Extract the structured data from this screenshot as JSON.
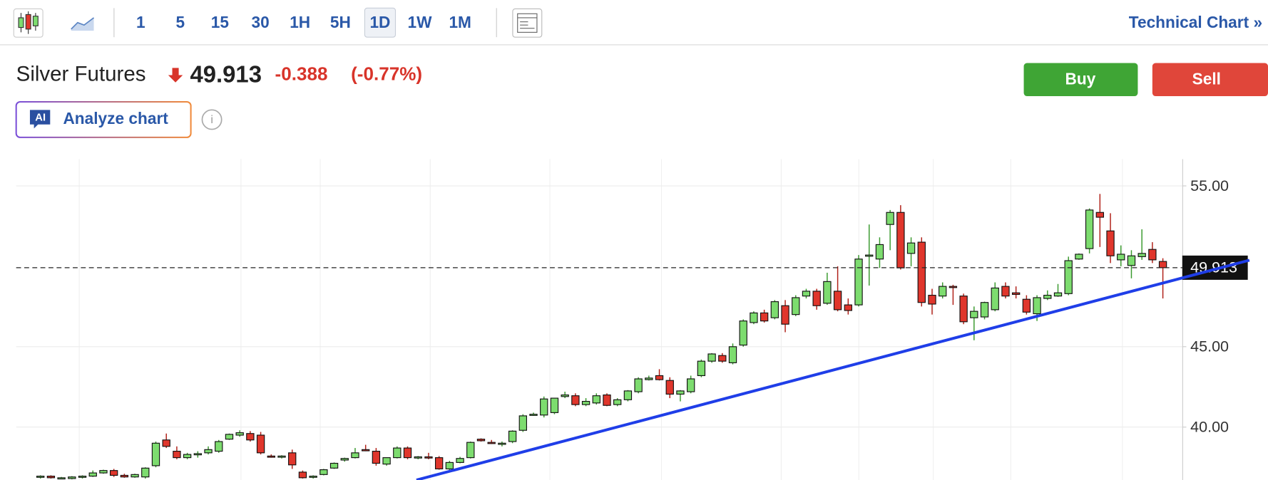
{
  "toolbar": {
    "intervals": [
      "1",
      "5",
      "15",
      "30",
      "1H",
      "5H",
      "1D",
      "1W",
      "1M"
    ],
    "selected": "1D",
    "link": "Technical Chart »"
  },
  "header": {
    "instrument": "Silver Futures",
    "price": 49.913,
    "change": -0.388,
    "change_pct": "(-0.77%)",
    "buy": "Buy",
    "sell": "Sell",
    "ai_badge": "AI",
    "analyze": "Analyze chart",
    "info": "i"
  },
  "chart_data": {
    "type": "candlestick",
    "up_color": "#7ddc6f",
    "down_color": "#e0362c",
    "ylim": [
      36.71,
      56.66
    ],
    "yticks": [
      {
        "value": 55,
        "label": "55.00"
      },
      {
        "value": 45,
        "label": "45.00"
      },
      {
        "value": 40,
        "label": "40.00"
      }
    ],
    "grid": true,
    "open": [
      36.9,
      36.95,
      36.85,
      36.8,
      36.9,
      36.95,
      37.15,
      37.3,
      37.0,
      36.9,
      36.9,
      37.6,
      39.2,
      38.5,
      38.1,
      38.3,
      38.4,
      38.5,
      39.25,
      39.5,
      39.6,
      39.5,
      38.2,
      38.15,
      38.4,
      37.2,
      36.9,
      37.05,
      37.45,
      37.95,
      38.1,
      38.6,
      38.5,
      37.7,
      38.1,
      38.7,
      38.1,
      38.15,
      38.1,
      37.4,
      37.8,
      38.1,
      39.25,
      39.05,
      38.95,
      39.1,
      39.8,
      40.75,
      40.75,
      40.9,
      41.9,
      41.95,
      41.4,
      41.5,
      42.0,
      41.4,
      41.7,
      42.2,
      42.95,
      43.2,
      42.9,
      42.05,
      42.2,
      43.2,
      44.1,
      44.45,
      44.0,
      45.1,
      46.5,
      47.1,
      46.8,
      47.55,
      47.0,
      48.15,
      48.45,
      47.7,
      48.45,
      47.6,
      47.6,
      50.65,
      50.45,
      52.6,
      53.35,
      50.8,
      51.5,
      48.2,
      48.15,
      48.75,
      48.15,
      46.8,
      46.85,
      47.3,
      48.75,
      48.35,
      47.95,
      47.05,
      48.0,
      48.15,
      48.3,
      50.45,
      51.1,
      53.35,
      52.2,
      50.4,
      50.05,
      50.6,
      51.05,
      50.3
    ],
    "high": [
      37.0,
      37.0,
      36.9,
      36.95,
      37.0,
      37.3,
      37.35,
      37.4,
      37.1,
      37.1,
      37.5,
      39.1,
      39.6,
      38.8,
      38.4,
      38.5,
      38.8,
      39.2,
      39.6,
      39.8,
      39.75,
      39.7,
      38.3,
      38.25,
      38.6,
      37.3,
      37.0,
      37.4,
      37.8,
      38.1,
      38.7,
      38.9,
      38.7,
      38.1,
      38.8,
      38.8,
      38.2,
      38.4,
      38.2,
      37.9,
      38.15,
      39.1,
      39.3,
      39.2,
      39.1,
      39.8,
      40.8,
      40.9,
      41.9,
      41.8,
      42.2,
      42.1,
      41.8,
      42.1,
      42.1,
      41.8,
      42.3,
      43.1,
      43.2,
      43.6,
      43.1,
      42.3,
      43.2,
      44.2,
      44.6,
      44.6,
      45.2,
      46.7,
      47.2,
      47.3,
      47.9,
      47.9,
      48.2,
      48.6,
      48.6,
      49.6,
      50.0,
      48.0,
      50.7,
      52.6,
      51.8,
      53.5,
      53.8,
      51.8,
      51.8,
      48.6,
      49.0,
      48.85,
      48.3,
      47.5,
      47.8,
      49.0,
      49.0,
      48.75,
      48.2,
      48.2,
      48.5,
      48.9,
      50.6,
      50.8,
      53.6,
      54.5,
      53.3,
      51.3,
      51.0,
      52.3,
      51.5,
      50.5
    ],
    "low": [
      36.8,
      36.8,
      36.8,
      36.75,
      36.8,
      36.9,
      37.1,
      36.9,
      36.85,
      36.85,
      36.8,
      37.5,
      38.7,
      38.0,
      38.0,
      38.1,
      38.3,
      38.4,
      39.2,
      39.4,
      39.1,
      38.3,
      38.1,
      38.05,
      37.4,
      36.8,
      36.8,
      37.0,
      37.4,
      37.85,
      38.05,
      38.5,
      37.6,
      37.6,
      38.05,
      38.0,
      38.0,
      38.0,
      37.35,
      37.3,
      37.75,
      38.05,
      39.1,
      38.95,
      38.8,
      39.0,
      39.7,
      40.7,
      40.6,
      40.8,
      41.8,
      41.3,
      41.3,
      41.4,
      41.3,
      41.3,
      41.6,
      42.1,
      42.9,
      42.9,
      41.8,
      41.6,
      42.1,
      43.1,
      44.0,
      44.0,
      43.9,
      45.0,
      46.4,
      46.5,
      46.7,
      45.9,
      46.9,
      48.0,
      47.3,
      47.6,
      47.2,
      47.0,
      47.5,
      48.8,
      49.9,
      51.0,
      49.8,
      50.0,
      47.5,
      47.0,
      48.0,
      47.6,
      46.4,
      45.4,
      46.7,
      47.2,
      48.0,
      48.0,
      47.0,
      46.6,
      47.9,
      48.1,
      48.2,
      50.4,
      50.8,
      51.2,
      50.2,
      50.0,
      49.25,
      50.4,
      50.2,
      48.0
    ],
    "close": [
      36.95,
      36.85,
      36.85,
      36.9,
      36.95,
      37.15,
      37.3,
      37.0,
      36.9,
      37.05,
      37.45,
      39.0,
      38.8,
      38.1,
      38.3,
      38.35,
      38.6,
      39.1,
      39.55,
      39.65,
      39.2,
      38.4,
      38.15,
      38.2,
      37.65,
      36.85,
      36.95,
      37.35,
      37.75,
      38.05,
      38.4,
      38.55,
      37.75,
      38.1,
      38.7,
      38.1,
      38.15,
      38.1,
      37.4,
      37.8,
      38.05,
      39.05,
      39.15,
      39.0,
      39.0,
      39.75,
      40.7,
      40.8,
      41.75,
      41.8,
      42.0,
      41.4,
      41.6,
      41.95,
      41.35,
      41.7,
      42.25,
      43.0,
      43.05,
      42.95,
      42.05,
      42.25,
      43.0,
      44.1,
      44.55,
      44.1,
      45.0,
      46.6,
      47.1,
      46.6,
      47.8,
      46.4,
      48.05,
      48.45,
      47.55,
      49.05,
      47.3,
      47.25,
      50.45,
      50.7,
      51.35,
      53.35,
      49.9,
      51.45,
      47.75,
      47.65,
      48.75,
      48.7,
      46.55,
      47.2,
      47.75,
      48.65,
      48.15,
      48.25,
      47.15,
      48.05,
      48.2,
      48.35,
      50.35,
      50.75,
      53.5,
      53.05,
      50.65,
      50.75,
      50.65,
      50.8,
      50.4,
      49.913
    ]
  }
}
